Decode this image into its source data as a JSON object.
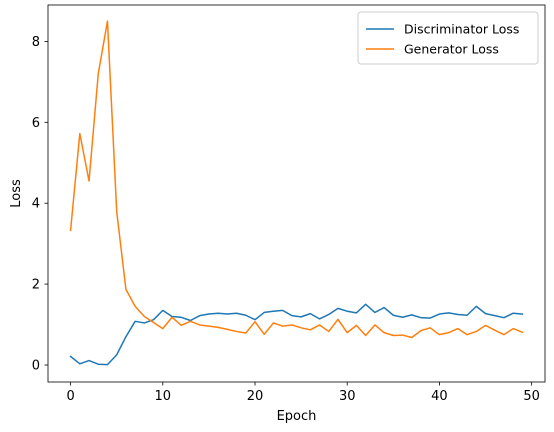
{
  "chart_data": {
    "type": "line",
    "xlabel": "Epoch",
    "ylabel": "Loss",
    "xlim": [
      -2.45,
      51.45
    ],
    "ylim": [
      -0.42,
      8.9
    ],
    "xticks": [
      0,
      10,
      20,
      30,
      40,
      50
    ],
    "yticks": [
      0,
      2,
      4,
      6,
      8
    ],
    "grid": false,
    "legend_position": "top-right",
    "x": [
      0,
      1,
      2,
      3,
      4,
      5,
      6,
      7,
      8,
      9,
      10,
      11,
      12,
      13,
      14,
      15,
      16,
      17,
      18,
      19,
      20,
      21,
      22,
      23,
      24,
      25,
      26,
      27,
      28,
      29,
      30,
      31,
      32,
      33,
      34,
      35,
      36,
      37,
      38,
      39,
      40,
      41,
      42,
      43,
      44,
      45,
      46,
      47,
      48,
      49
    ],
    "series": [
      {
        "name": "Discriminator Loss",
        "color": "#1f77b4",
        "values": [
          0.21,
          0.03,
          0.11,
          0.02,
          0.01,
          0.25,
          0.7,
          1.08,
          1.04,
          1.12,
          1.35,
          1.2,
          1.18,
          1.1,
          1.22,
          1.26,
          1.28,
          1.26,
          1.28,
          1.23,
          1.12,
          1.3,
          1.33,
          1.35,
          1.22,
          1.19,
          1.27,
          1.14,
          1.25,
          1.4,
          1.33,
          1.29,
          1.5,
          1.3,
          1.42,
          1.23,
          1.18,
          1.24,
          1.17,
          1.16,
          1.26,
          1.29,
          1.25,
          1.23,
          1.45,
          1.27,
          1.22,
          1.17,
          1.28,
          1.26
        ]
      },
      {
        "name": "Generator Loss",
        "color": "#ff7f0e",
        "values": [
          3.33,
          5.72,
          4.55,
          7.2,
          8.5,
          3.8,
          1.87,
          1.45,
          1.2,
          1.05,
          0.9,
          1.18,
          0.98,
          1.08,
          0.99,
          0.96,
          0.93,
          0.88,
          0.83,
          0.79,
          1.07,
          0.76,
          1.04,
          0.96,
          0.99,
          0.92,
          0.87,
          0.99,
          0.83,
          1.13,
          0.8,
          0.98,
          0.73,
          0.99,
          0.8,
          0.73,
          0.74,
          0.68,
          0.85,
          0.92,
          0.75,
          0.8,
          0.9,
          0.75,
          0.83,
          0.98,
          0.86,
          0.75,
          0.9,
          0.81
        ]
      }
    ]
  }
}
